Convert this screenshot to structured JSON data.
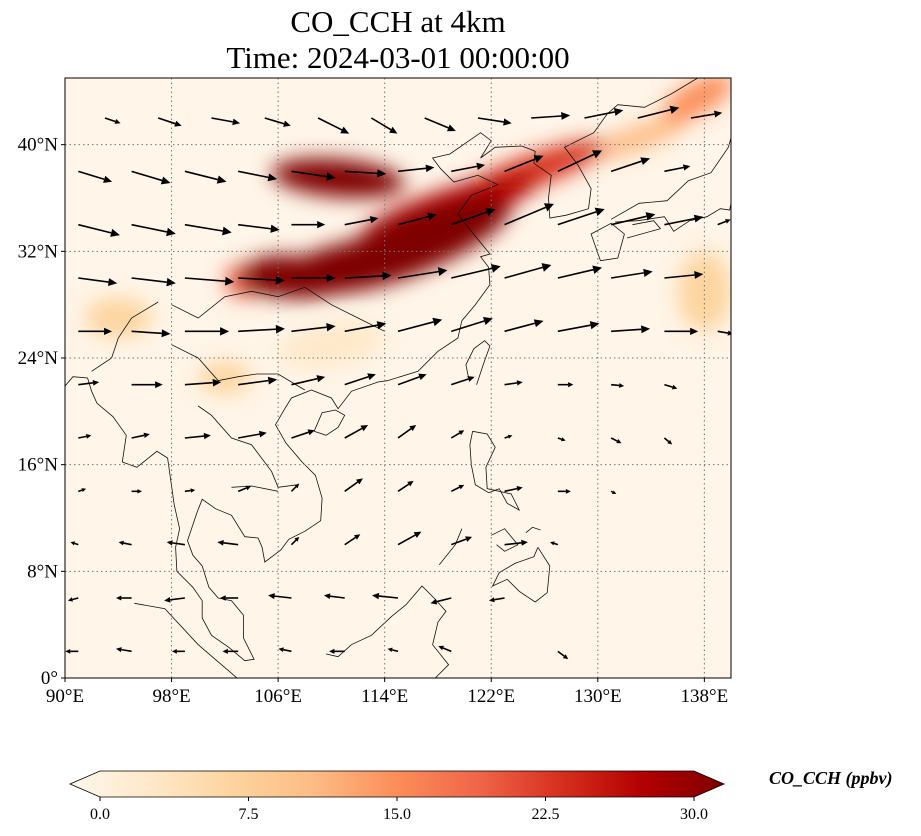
{
  "title": {
    "line1": "CO_CCH at 4km",
    "line2": "Time: 2024-03-01 00:00:00"
  },
  "map": {
    "projection": "PlateCarree",
    "lon_range": [
      90,
      140
    ],
    "lat_range": [
      0,
      45
    ],
    "gridlines": "dotted",
    "colormap": "OrRd"
  },
  "axes": {
    "lon_ticks": [
      {
        "value": 90,
        "label": "90°E"
      },
      {
        "value": 98,
        "label": "98°E"
      },
      {
        "value": 106,
        "label": "106°E"
      },
      {
        "value": 114,
        "label": "114°E"
      },
      {
        "value": 122,
        "label": "122°E"
      },
      {
        "value": 130,
        "label": "130°E"
      },
      {
        "value": 138,
        "label": "138°E"
      }
    ],
    "lat_ticks": [
      {
        "value": 0,
        "label": "0°"
      },
      {
        "value": 8,
        "label": "8°N"
      },
      {
        "value": 16,
        "label": "16°N"
      },
      {
        "value": 24,
        "label": "24°N"
      },
      {
        "value": 32,
        "label": "32°N"
      },
      {
        "value": 40,
        "label": "40°N"
      }
    ]
  },
  "colorbar": {
    "label": "CO_CCH (ppbv)",
    "min": 0,
    "max": 30,
    "extend": "both",
    "ticks": [
      {
        "value": 0,
        "label": "0.0"
      },
      {
        "value": 7.5,
        "label": "7.5"
      },
      {
        "value": 15,
        "label": "15.0"
      },
      {
        "value": 22.5,
        "label": "22.5"
      },
      {
        "value": 30,
        "label": "30.0"
      }
    ],
    "colors": [
      "#fff7ec",
      "#fee8c8",
      "#fdd49e",
      "#fdbb84",
      "#fc8d59",
      "#ef6548",
      "#d7301f",
      "#b30000",
      "#7f0000"
    ]
  },
  "plumes": [
    {
      "lon": 116,
      "lat": 32.5,
      "value": 30,
      "rlon": 8,
      "rlat": 2.2,
      "rot": 22
    },
    {
      "lon": 111,
      "lat": 30.8,
      "value": 30,
      "rlon": 6,
      "rlat": 1.8,
      "rot": 15
    },
    {
      "lon": 106,
      "lat": 30.2,
      "value": 29,
      "rlon": 3,
      "rlat": 1.5,
      "rot": 5
    },
    {
      "lon": 110.5,
      "lat": 37.5,
      "value": 30,
      "rlon": 5,
      "rlat": 1.4,
      "rot": -5
    },
    {
      "lon": 119,
      "lat": 35.3,
      "value": 27,
      "rlon": 7,
      "rlat": 1.4,
      "rot": 18
    },
    {
      "lon": 125,
      "lat": 38,
      "value": 24,
      "rlon": 6,
      "rlat": 1.2,
      "rot": 20
    },
    {
      "lon": 137.5,
      "lat": 43.5,
      "value": 15,
      "rlon": 3,
      "rlat": 1.2,
      "rot": 30
    },
    {
      "lon": 133,
      "lat": 40.5,
      "value": 12,
      "rlon": 4,
      "rlat": 0.9,
      "rot": 20
    },
    {
      "lon": 103.5,
      "lat": 29.8,
      "value": 18,
      "rlon": 1.5,
      "rlat": 1.3,
      "rot": 0
    },
    {
      "lon": 138,
      "lat": 29,
      "value": 8,
      "rlon": 2,
      "rlat": 3,
      "rot": 0
    },
    {
      "lon": 94,
      "lat": 27,
      "value": 6,
      "rlon": 2.5,
      "rlat": 1.5,
      "rot": 0
    },
    {
      "lon": 102,
      "lat": 22.5,
      "value": 6,
      "rlon": 2,
      "rlat": 1.2,
      "rot": 0
    },
    {
      "lon": 110,
      "lat": 25,
      "value": 5,
      "rlon": 4,
      "rlat": 1.5,
      "rot": 10
    }
  ],
  "wind_vectors": [
    {
      "lon": 91,
      "lat": 38,
      "u": 2.6,
      "v": -0.8
    },
    {
      "lon": 95,
      "lat": 38,
      "u": 3.0,
      "v": -0.9
    },
    {
      "lon": 99,
      "lat": 38,
      "u": 3.2,
      "v": -0.8
    },
    {
      "lon": 103,
      "lat": 38,
      "u": 3.0,
      "v": -0.6
    },
    {
      "lon": 107,
      "lat": 38,
      "u": 3.4,
      "v": -0.5
    },
    {
      "lon": 111,
      "lat": 38,
      "u": 3.2,
      "v": -0.2
    },
    {
      "lon": 115,
      "lat": 38,
      "u": 2.8,
      "v": 0.3
    },
    {
      "lon": 119,
      "lat": 38,
      "u": 2.6,
      "v": 0.5
    },
    {
      "lon": 123,
      "lat": 38,
      "u": 3.0,
      "v": 1.2
    },
    {
      "lon": 127,
      "lat": 38,
      "u": 3.4,
      "v": 1.6
    },
    {
      "lon": 131,
      "lat": 38,
      "u": 3.0,
      "v": 1.0
    },
    {
      "lon": 135,
      "lat": 38,
      "u": 2.0,
      "v": 0.4
    },
    {
      "lon": 93,
      "lat": 42,
      "u": 1.2,
      "v": -0.4
    },
    {
      "lon": 97,
      "lat": 42,
      "u": 1.8,
      "v": -0.6
    },
    {
      "lon": 101,
      "lat": 42,
      "u": 2.2,
      "v": -0.4
    },
    {
      "lon": 105,
      "lat": 42,
      "u": 2.0,
      "v": -0.6
    },
    {
      "lon": 109,
      "lat": 42,
      "u": 2.4,
      "v": -1.2
    },
    {
      "lon": 113,
      "lat": 42,
      "u": 2.0,
      "v": -1.2
    },
    {
      "lon": 117,
      "lat": 42,
      "u": 2.4,
      "v": -1.0
    },
    {
      "lon": 121,
      "lat": 42,
      "u": 2.6,
      "v": -0.4
    },
    {
      "lon": 125,
      "lat": 42,
      "u": 3.0,
      "v": 0.2
    },
    {
      "lon": 129,
      "lat": 42,
      "u": 3.0,
      "v": 0.6
    },
    {
      "lon": 133,
      "lat": 42,
      "u": 3.2,
      "v": 0.8
    },
    {
      "lon": 137,
      "lat": 42,
      "u": 2.4,
      "v": 0.4
    },
    {
      "lon": 91,
      "lat": 34,
      "u": 3.2,
      "v": -0.8
    },
    {
      "lon": 95,
      "lat": 34,
      "u": 3.4,
      "v": -0.7
    },
    {
      "lon": 99,
      "lat": 34,
      "u": 3.6,
      "v": -0.6
    },
    {
      "lon": 103,
      "lat": 34,
      "u": 3.2,
      "v": -0.4
    },
    {
      "lon": 107,
      "lat": 34,
      "u": 2.6,
      "v": 0.0
    },
    {
      "lon": 111,
      "lat": 34,
      "u": 2.6,
      "v": 0.5
    },
    {
      "lon": 115,
      "lat": 34,
      "u": 3.0,
      "v": 0.8
    },
    {
      "lon": 119,
      "lat": 34,
      "u": 3.4,
      "v": 1.2
    },
    {
      "lon": 123,
      "lat": 34,
      "u": 3.8,
      "v": 1.6
    },
    {
      "lon": 127,
      "lat": 34,
      "u": 3.6,
      "v": 1.2
    },
    {
      "lon": 131,
      "lat": 34,
      "u": 3.4,
      "v": 0.8
    },
    {
      "lon": 135,
      "lat": 34,
      "u": 3.0,
      "v": 0.6
    },
    {
      "lon": 139,
      "lat": 34,
      "u": 1.0,
      "v": 0.4
    },
    {
      "lon": 91,
      "lat": 30,
      "u": 3.0,
      "v": -0.4
    },
    {
      "lon": 95,
      "lat": 30,
      "u": 3.4,
      "v": -0.4
    },
    {
      "lon": 99,
      "lat": 30,
      "u": 3.8,
      "v": -0.3
    },
    {
      "lon": 103,
      "lat": 30,
      "u": 3.6,
      "v": -0.2
    },
    {
      "lon": 107,
      "lat": 30,
      "u": 3.4,
      "v": 0.0
    },
    {
      "lon": 111,
      "lat": 30,
      "u": 3.6,
      "v": 0.2
    },
    {
      "lon": 115,
      "lat": 30,
      "u": 3.8,
      "v": 0.6
    },
    {
      "lon": 119,
      "lat": 30,
      "u": 3.8,
      "v": 0.9
    },
    {
      "lon": 123,
      "lat": 30,
      "u": 3.6,
      "v": 1.0
    },
    {
      "lon": 127,
      "lat": 30,
      "u": 3.4,
      "v": 0.8
    },
    {
      "lon": 131,
      "lat": 30,
      "u": 3.2,
      "v": 0.5
    },
    {
      "lon": 135,
      "lat": 30,
      "u": 3.0,
      "v": 0.3
    },
    {
      "lon": 91,
      "lat": 26,
      "u": 2.6,
      "v": 0.0
    },
    {
      "lon": 95,
      "lat": 26,
      "u": 3.0,
      "v": -0.2
    },
    {
      "lon": 99,
      "lat": 26,
      "u": 3.4,
      "v": 0.0
    },
    {
      "lon": 103,
      "lat": 26,
      "u": 3.6,
      "v": 0.2
    },
    {
      "lon": 107,
      "lat": 26,
      "u": 3.4,
      "v": 0.4
    },
    {
      "lon": 111,
      "lat": 26,
      "u": 3.2,
      "v": 0.6
    },
    {
      "lon": 115,
      "lat": 26,
      "u": 3.4,
      "v": 0.9
    },
    {
      "lon": 119,
      "lat": 26,
      "u": 3.2,
      "v": 1.0
    },
    {
      "lon": 123,
      "lat": 26,
      "u": 3.0,
      "v": 0.8
    },
    {
      "lon": 127,
      "lat": 26,
      "u": 3.2,
      "v": 0.6
    },
    {
      "lon": 131,
      "lat": 26,
      "u": 3.0,
      "v": 0.2
    },
    {
      "lon": 135,
      "lat": 26,
      "u": 2.6,
      "v": 0.0
    },
    {
      "lon": 139,
      "lat": 26,
      "u": 1.2,
      "v": -0.2
    },
    {
      "lon": 91,
      "lat": 22,
      "u": 1.6,
      "v": 0.2
    },
    {
      "lon": 95,
      "lat": 22,
      "u": 2.4,
      "v": 0.0
    },
    {
      "lon": 99,
      "lat": 22,
      "u": 2.8,
      "v": 0.2
    },
    {
      "lon": 103,
      "lat": 22,
      "u": 3.0,
      "v": 0.4
    },
    {
      "lon": 107,
      "lat": 22,
      "u": 2.6,
      "v": 0.6
    },
    {
      "lon": 111,
      "lat": 22,
      "u": 2.4,
      "v": 0.8
    },
    {
      "lon": 115,
      "lat": 22,
      "u": 2.2,
      "v": 0.8
    },
    {
      "lon": 119,
      "lat": 22,
      "u": 1.8,
      "v": 0.6
    },
    {
      "lon": 123,
      "lat": 22,
      "u": 1.4,
      "v": 0.2
    },
    {
      "lon": 127,
      "lat": 22,
      "u": 1.2,
      "v": 0.0
    },
    {
      "lon": 131,
      "lat": 22,
      "u": 1.0,
      "v": -0.1
    },
    {
      "lon": 135,
      "lat": 22,
      "u": 1.0,
      "v": -0.3
    },
    {
      "lon": 91,
      "lat": 18,
      "u": 1.0,
      "v": 0.2
    },
    {
      "lon": 95,
      "lat": 18,
      "u": 1.4,
      "v": 0.3
    },
    {
      "lon": 99,
      "lat": 18,
      "u": 2.0,
      "v": 0.2
    },
    {
      "lon": 103,
      "lat": 18,
      "u": 2.2,
      "v": 0.4
    },
    {
      "lon": 107,
      "lat": 18,
      "u": 1.8,
      "v": 0.6
    },
    {
      "lon": 111,
      "lat": 18,
      "u": 1.8,
      "v": 1.0
    },
    {
      "lon": 115,
      "lat": 18,
      "u": 1.4,
      "v": 1.0
    },
    {
      "lon": 119,
      "lat": 18,
      "u": 1.0,
      "v": 0.6
    },
    {
      "lon": 123,
      "lat": 18,
      "u": 0.6,
      "v": 0.2
    },
    {
      "lon": 127,
      "lat": 18,
      "u": 0.6,
      "v": -0.2
    },
    {
      "lon": 131,
      "lat": 18,
      "u": 0.8,
      "v": -0.4
    },
    {
      "lon": 135,
      "lat": 18,
      "u": 0.6,
      "v": -0.5
    },
    {
      "lon": 91,
      "lat": 14,
      "u": 0.6,
      "v": 0.2
    },
    {
      "lon": 95,
      "lat": 14,
      "u": 0.8,
      "v": 0.0
    },
    {
      "lon": 99,
      "lat": 14,
      "u": 0.8,
      "v": 0.1
    },
    {
      "lon": 103,
      "lat": 14,
      "u": 1.0,
      "v": 0.4
    },
    {
      "lon": 107,
      "lat": 14,
      "u": 0.6,
      "v": 0.6
    },
    {
      "lon": 111,
      "lat": 14,
      "u": 1.4,
      "v": 1.0
    },
    {
      "lon": 115,
      "lat": 14,
      "u": 1.2,
      "v": 0.8
    },
    {
      "lon": 119,
      "lat": 14,
      "u": 1.0,
      "v": 0.5
    },
    {
      "lon": 123,
      "lat": 14,
      "u": 1.4,
      "v": 0.3
    },
    {
      "lon": 127,
      "lat": 14,
      "u": 1.0,
      "v": 0.0
    },
    {
      "lon": 131,
      "lat": 14,
      "u": 0.4,
      "v": -0.2
    },
    {
      "lon": 91,
      "lat": 10,
      "u": -0.6,
      "v": 0.2
    },
    {
      "lon": 95,
      "lat": 10,
      "u": -1.0,
      "v": 0.2
    },
    {
      "lon": 99,
      "lat": 10,
      "u": -1.4,
      "v": 0.2
    },
    {
      "lon": 103,
      "lat": 10,
      "u": -1.6,
      "v": 0.2
    },
    {
      "lon": 107,
      "lat": 10,
      "u": 0.6,
      "v": 0.6
    },
    {
      "lon": 111,
      "lat": 10,
      "u": 1.2,
      "v": 0.8
    },
    {
      "lon": 115,
      "lat": 10,
      "u": 1.8,
      "v": 1.0
    },
    {
      "lon": 119,
      "lat": 10,
      "u": 1.6,
      "v": 0.6
    },
    {
      "lon": 123,
      "lat": 10,
      "u": 1.8,
      "v": 0.2
    },
    {
      "lon": 127,
      "lat": 10,
      "u": -0.6,
      "v": 0.2
    },
    {
      "lon": 91,
      "lat": 6,
      "u": -0.8,
      "v": -0.2
    },
    {
      "lon": 95,
      "lat": 6,
      "u": -1.2,
      "v": 0.0
    },
    {
      "lon": 99,
      "lat": 6,
      "u": -1.6,
      "v": -0.2
    },
    {
      "lon": 103,
      "lat": 6,
      "u": -1.4,
      "v": 0.0
    },
    {
      "lon": 107,
      "lat": 6,
      "u": -1.8,
      "v": 0.2
    },
    {
      "lon": 111,
      "lat": 6,
      "u": -1.6,
      "v": 0.2
    },
    {
      "lon": 115,
      "lat": 6,
      "u": -2.0,
      "v": 0.2
    },
    {
      "lon": 119,
      "lat": 6,
      "u": -1.6,
      "v": -0.4
    },
    {
      "lon": 123,
      "lat": 6,
      "u": -1.2,
      "v": -0.2
    },
    {
      "lon": 91,
      "lat": 2,
      "u": -1.0,
      "v": 0.0
    },
    {
      "lon": 95,
      "lat": 2,
      "u": -1.2,
      "v": 0.2
    },
    {
      "lon": 99,
      "lat": 2,
      "u": -1.0,
      "v": 0.0
    },
    {
      "lon": 103,
      "lat": 2,
      "u": -1.2,
      "v": 0.0
    },
    {
      "lon": 107,
      "lat": 2,
      "u": -1.0,
      "v": 0.2
    },
    {
      "lon": 111,
      "lat": 2,
      "u": -1.2,
      "v": 0.0
    },
    {
      "lon": 115,
      "lat": 2,
      "u": -0.8,
      "v": 0.2
    },
    {
      "lon": 119,
      "lat": 2,
      "u": -1.0,
      "v": 0.4
    },
    {
      "lon": 127,
      "lat": 2,
      "u": 0.8,
      "v": -0.6
    }
  ]
}
